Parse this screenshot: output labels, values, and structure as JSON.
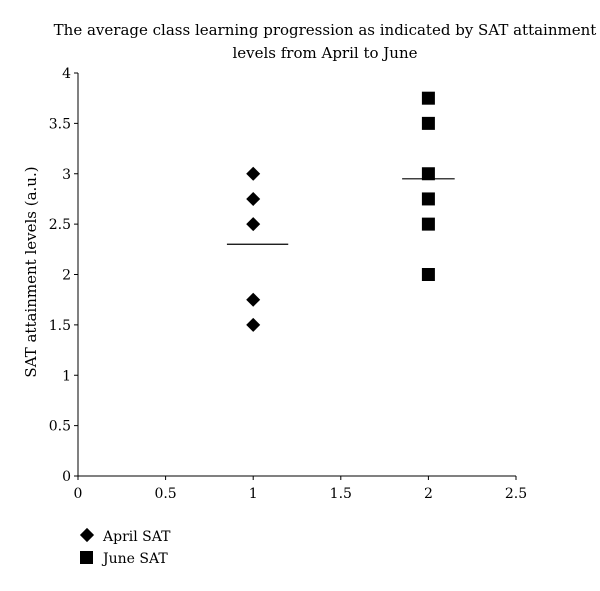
{
  "chart_data": {
    "type": "scatter",
    "title": "The average class learning progression as indicated by SAT attainment levels from April to June",
    "title_lines": [
      "The average class learning progression as indicated by SAT attainment",
      "levels from April to June"
    ],
    "xlabel": "",
    "ylabel": "SAT attainment levels (a.u.)",
    "xlim": [
      0,
      2.5
    ],
    "ylim": [
      0,
      4
    ],
    "x_ticks": [
      "0",
      "0.5",
      "1",
      "1.5",
      "2",
      "2.5"
    ],
    "y_ticks": [
      "0",
      "0.5",
      "1",
      "1.5",
      "2",
      "2.5",
      "3",
      "3.5",
      "4"
    ],
    "grid": false,
    "legend_position": "bottom-left",
    "series": [
      {
        "name": "April SAT",
        "marker": "diamond",
        "color": "#000000",
        "points": [
          {
            "x": 1,
            "y": 3
          },
          {
            "x": 1,
            "y": 2.75
          },
          {
            "x": 1,
            "y": 2.5
          },
          {
            "x": 1,
            "y": 1.75
          },
          {
            "x": 1,
            "y": 1.5
          }
        ]
      },
      {
        "name": "June SAT",
        "marker": "square",
        "color": "#000000",
        "points": [
          {
            "x": 2,
            "y": 3.75
          },
          {
            "x": 2,
            "y": 3.5
          },
          {
            "x": 2,
            "y": 3
          },
          {
            "x": 2,
            "y": 2.75
          },
          {
            "x": 2,
            "y": 2.5
          },
          {
            "x": 2,
            "y": 2
          }
        ]
      }
    ],
    "mean_lines": [
      {
        "x_start": 0.85,
        "x_end": 1.2,
        "y": 2.3
      },
      {
        "x_start": 1.85,
        "x_end": 2.15,
        "y": 2.95
      }
    ]
  }
}
